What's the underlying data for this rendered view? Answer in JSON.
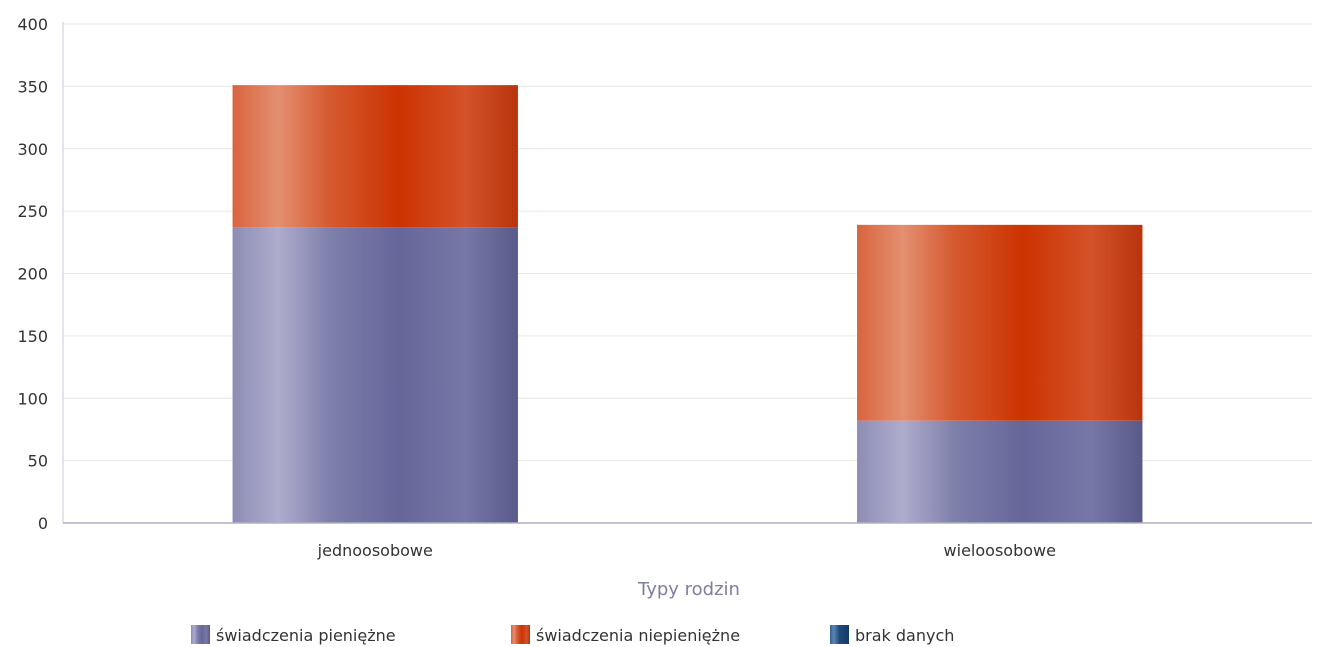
{
  "chart_data": {
    "type": "bar",
    "stacked": true,
    "categories": [
      "jednoosobowe",
      "wieloosobowe"
    ],
    "series": [
      {
        "name": "świadczenia pieniężne",
        "values": [
          237,
          82
        ],
        "color": "#6b6b9e"
      },
      {
        "name": "świadczenia niepieniężne",
        "values": [
          114,
          157
        ],
        "color": "#d03a0f"
      },
      {
        "name": "brak danych",
        "values": [
          0,
          0
        ],
        "color": "#1e4a7a"
      }
    ],
    "ylim": [
      0,
      400
    ],
    "yticks": [
      0,
      50,
      100,
      150,
      200,
      250,
      300,
      350,
      400
    ],
    "xlabel": "Typy rodzin",
    "ylabel": "",
    "grid": true,
    "legend_position": "bottom"
  }
}
